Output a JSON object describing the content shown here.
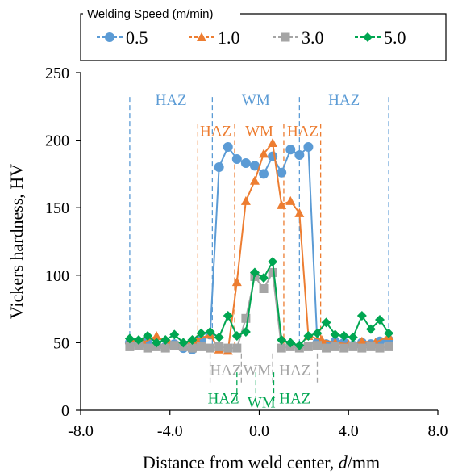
{
  "chart_data": {
    "type": "line",
    "xlabel_prefix": "Distance from  weld center, ",
    "xlabel_var": "d",
    "xlabel_unit": "/mm",
    "ylabel": "Vickers hardness, HV",
    "xlim": [
      -8.0,
      8.0
    ],
    "ylim": [
      0,
      250
    ],
    "x_ticks": [
      "-8.0",
      "-4.0",
      "0.0",
      "4.0",
      "8.0"
    ],
    "y_ticks": [
      "0",
      "50",
      "100",
      "150",
      "200",
      "250"
    ],
    "legend_title": "Welding Speed (m/min)",
    "legend_position": "top",
    "grid": false,
    "series": [
      {
        "name": "0.5",
        "marker": "circle",
        "color": "#5B9BD5",
        "x": [
          -5.8,
          -5.4,
          -5.0,
          -4.6,
          -4.2,
          -3.8,
          -3.4,
          -3.0,
          -2.6,
          -2.2,
          -1.8,
          -1.4,
          -1.0,
          -0.6,
          -0.2,
          0.2,
          0.6,
          1.0,
          1.4,
          1.8,
          2.2,
          2.6,
          3.0,
          3.4,
          3.8,
          4.2,
          4.6,
          5.0,
          5.4,
          5.8
        ],
        "y": [
          50,
          49,
          51,
          48,
          47,
          49,
          46,
          45,
          52,
          56,
          180,
          195,
          186,
          183,
          181,
          175,
          188,
          176,
          193,
          189,
          195,
          50,
          49,
          51,
          50,
          48,
          50,
          49,
          51,
          52
        ]
      },
      {
        "name": "1.0",
        "marker": "triangle",
        "color": "#ED7D31",
        "x": [
          -5.8,
          -5.2,
          -4.6,
          -4.0,
          -3.4,
          -2.8,
          -2.2,
          -1.8,
          -1.4,
          -1.0,
          -0.6,
          -0.2,
          0.2,
          0.6,
          1.0,
          1.4,
          1.8,
          2.2,
          2.8,
          3.4,
          4.0,
          4.6,
          5.2,
          5.8
        ],
        "y": [
          52,
          50,
          55,
          49,
          48,
          52,
          56,
          45,
          44,
          95,
          155,
          170,
          190,
          198,
          152,
          155,
          146,
          55,
          52,
          50,
          49,
          51,
          50,
          55
        ]
      },
      {
        "name": "3.0",
        "marker": "square",
        "color": "#A5A5A5",
        "x": [
          -5.8,
          -5.4,
          -5.0,
          -4.6,
          -4.2,
          -3.8,
          -3.4,
          -3.0,
          -2.6,
          -2.2,
          -1.8,
          -1.4,
          -1.0,
          -0.6,
          -0.2,
          0.2,
          0.6,
          1.0,
          1.4,
          1.8,
          2.2,
          2.6,
          3.0,
          3.4,
          3.8,
          4.2,
          4.6,
          5.0,
          5.4,
          5.8
        ],
        "y": [
          47,
          48,
          46,
          47,
          46,
          48,
          47,
          46,
          47,
          46,
          47,
          46,
          46,
          68,
          99,
          90,
          102,
          46,
          47,
          46,
          47,
          48,
          46,
          47,
          46,
          47,
          46,
          47,
          46,
          47
        ]
      },
      {
        "name": "5.0",
        "marker": "diamond",
        "color": "#00A651",
        "x": [
          -5.8,
          -5.4,
          -5.0,
          -4.6,
          -4.2,
          -3.8,
          -3.4,
          -3.0,
          -2.6,
          -2.2,
          -1.8,
          -1.4,
          -1.0,
          -0.6,
          -0.2,
          0.2,
          0.6,
          1.0,
          1.4,
          1.8,
          2.2,
          2.6,
          3.0,
          3.4,
          3.8,
          4.2,
          4.6,
          5.0,
          5.4,
          5.8
        ],
        "y": [
          53,
          52,
          55,
          50,
          52,
          56,
          50,
          52,
          57,
          58,
          54,
          70,
          55,
          58,
          102,
          98,
          110,
          52,
          50,
          48,
          55,
          57,
          65,
          56,
          55,
          54,
          70,
          60,
          67,
          57
        ]
      }
    ],
    "zones": [
      {
        "series": "0.5",
        "color": "#5B9BD5",
        "lines_x": [
          -5.8,
          -2.1,
          1.8,
          5.8
        ],
        "line_top": 232,
        "line_bottom": 45,
        "labels": [
          {
            "text": "HAZ",
            "x": -3.95,
            "y": 226
          },
          {
            "text": "WM",
            "x": -0.15,
            "y": 226
          },
          {
            "text": "HAZ",
            "x": 3.8,
            "y": 226
          }
        ]
      },
      {
        "series": "1.0",
        "color": "#ED7D31",
        "lines_x": [
          -2.75,
          -1.1,
          1.1,
          2.75
        ],
        "line_top": 212,
        "line_bottom": 45,
        "labels": [
          {
            "text": "HAZ",
            "x": -1.95,
            "y": 203
          },
          {
            "text": "WM",
            "x": 0.0,
            "y": 203
          },
          {
            "text": "HAZ",
            "x": 1.95,
            "y": 203
          }
        ]
      },
      {
        "series": "3.0",
        "color": "#A5A5A5",
        "lines_x": [
          -2.2,
          -0.8,
          0.6,
          2.6
        ],
        "line_top": 42,
        "line_bottom": 20,
        "labels": [
          {
            "text": "HAZ",
            "x": -1.5,
            "y": 26
          },
          {
            "text": "WM",
            "x": -0.1,
            "y": 26
          },
          {
            "text": "HAZ",
            "x": 1.6,
            "y": 26
          }
        ]
      },
      {
        "series": "5.0",
        "color": "#00A651",
        "lines_x": [
          -1.0,
          -0.15,
          0.65
        ],
        "line_top": 28,
        "line_bottom": 7,
        "labels": [
          {
            "text": "HAZ",
            "x": -1.6,
            "y": 5
          },
          {
            "text": "WM",
            "x": 0.1,
            "y": 2
          },
          {
            "text": "HAZ",
            "x": 1.6,
            "y": 5
          }
        ]
      }
    ]
  }
}
